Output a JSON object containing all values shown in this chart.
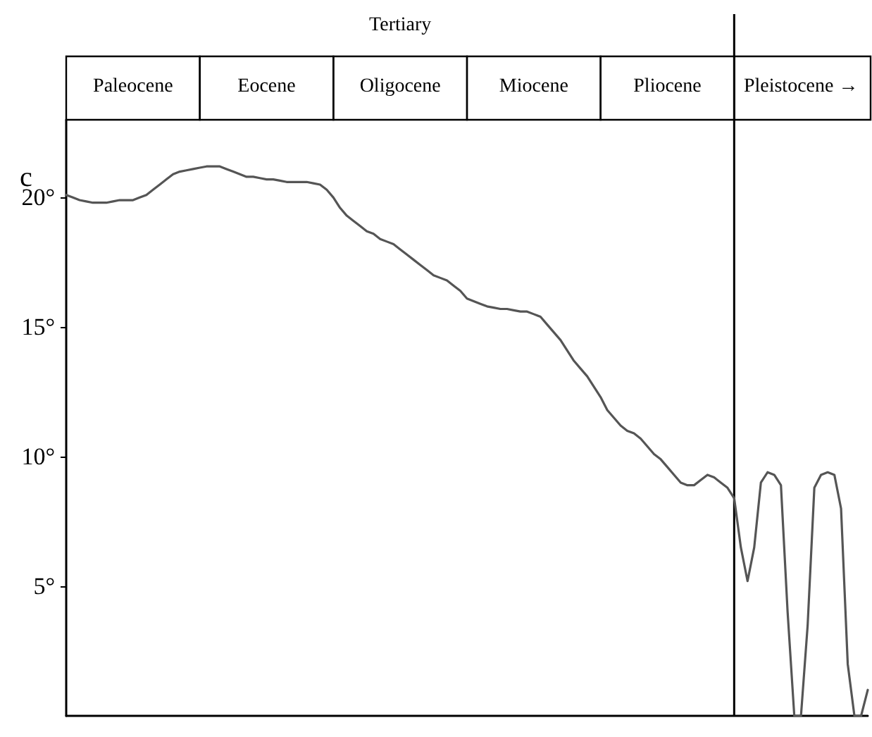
{
  "chart_data": {
    "type": "line",
    "ylabel": "c",
    "line_style": "solid",
    "grid": false,
    "annotations": [
      "Tertiary"
    ],
    "categories": [
      null,
      null,
      null,
      null,
      null,
      null,
      null,
      null,
      null,
      null,
      "Paleocene",
      null,
      null,
      null,
      null,
      null,
      null,
      null,
      null,
      null,
      null,
      null,
      null,
      null,
      null,
      null,
      null,
      null,
      null,
      null,
      "Eocene",
      null,
      null,
      null,
      null,
      null,
      null,
      null,
      null,
      null,
      null,
      null,
      null,
      null,
      null,
      null,
      null,
      null,
      null,
      null,
      "Oligocene",
      null,
      null,
      null,
      null,
      null,
      null,
      null,
      null,
      null,
      null,
      null,
      null,
      null,
      null,
      null,
      null,
      null,
      null,
      null,
      "Miocene",
      null,
      null,
      null,
      null,
      null,
      null,
      null,
      null,
      null,
      null,
      null,
      null,
      null,
      null,
      null,
      null,
      null,
      null,
      null,
      "Pliocene",
      null,
      null,
      null,
      null,
      null,
      null,
      null,
      null,
      null,
      null,
      null,
      null,
      null,
      null,
      null,
      null,
      null,
      null,
      null,
      "Pleistocene →",
      null,
      null,
      null,
      null,
      null,
      null,
      null,
      null,
      null,
      null
    ],
    "series": [
      {
        "color": "#555555",
        "values": [
          20.1,
          20.0,
          19.9,
          19.85,
          19.8,
          19.8,
          19.8,
          19.85,
          19.9,
          19.9,
          19.9,
          20.0,
          20.1,
          20.3,
          20.5,
          20.7,
          20.9,
          21.0,
          21.05,
          21.1,
          21.15,
          21.2,
          21.2,
          21.2,
          21.1,
          21.0,
          20.9,
          20.8,
          20.8,
          20.75,
          20.7,
          20.7,
          20.65,
          20.6,
          20.6,
          20.6,
          20.6,
          20.55,
          20.5,
          20.3,
          20.0,
          19.6,
          19.3,
          19.1,
          18.9,
          18.7,
          18.6,
          18.4,
          18.3,
          18.2,
          18.0,
          17.8,
          17.6,
          17.4,
          17.2,
          17.0,
          16.9,
          16.8,
          16.6,
          16.4,
          16.1,
          16.0,
          15.9,
          15.8,
          15.75,
          15.7,
          15.7,
          15.65,
          15.6,
          15.6,
          15.5,
          15.4,
          15.1,
          14.8,
          14.5,
          14.1,
          13.7,
          13.4,
          13.1,
          12.7,
          12.3,
          11.8,
          11.5,
          11.2,
          11.0,
          10.9,
          10.7,
          10.4,
          10.1,
          9.9,
          9.6,
          9.3,
          9.0,
          8.9,
          8.9,
          9.1,
          9.3,
          9.2,
          9.0,
          8.8,
          8.4,
          6.5,
          5.2,
          6.5,
          9.0,
          9.4,
          9.3,
          8.9,
          4.0,
          0,
          0,
          3.5,
          8.8,
          9.3,
          9.4,
          9.3,
          8.0,
          2.0,
          0,
          0,
          1.0
        ]
      }
    ],
    "ylim": [
      0,
      23
    ],
    "yticks": [
      {
        "value": 5,
        "label": "5°"
      },
      {
        "value": 10,
        "label": "10°"
      },
      {
        "value": 15,
        "label": "15°"
      },
      {
        "value": 20,
        "label": "20°"
      }
    ]
  }
}
